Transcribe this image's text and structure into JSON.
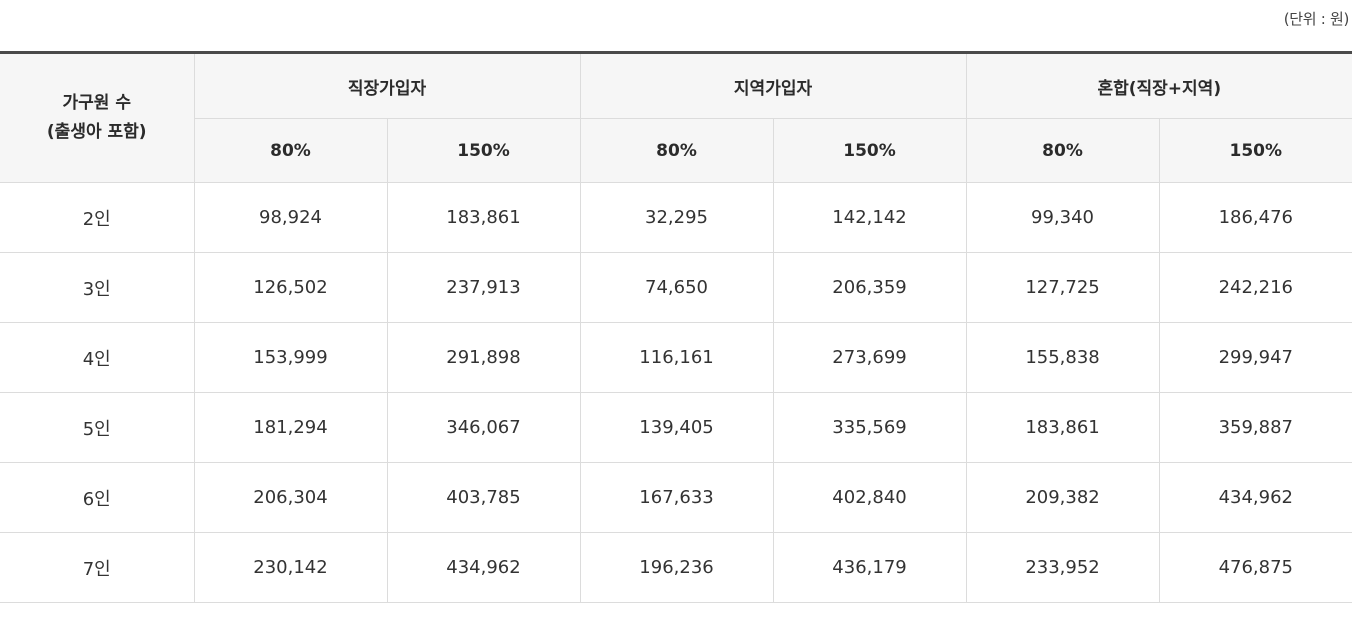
{
  "unit_note": "(단위 : 원)",
  "table": {
    "header": {
      "household": {
        "line1": "가구원 수",
        "line2": "(출생아 포함)"
      },
      "groups": [
        {
          "label": "직장가입자"
        },
        {
          "label": "지역가입자"
        },
        {
          "label": "혼합(직장+지역)"
        }
      ],
      "sub": [
        "80%",
        "150%",
        "80%",
        "150%",
        "80%",
        "150%"
      ]
    },
    "rows": [
      {
        "household": "2인",
        "values": [
          "98,924",
          "183,861",
          "32,295",
          "142,142",
          "99,340",
          "186,476"
        ]
      },
      {
        "household": "3인",
        "values": [
          "126,502",
          "237,913",
          "74,650",
          "206,359",
          "127,725",
          "242,216"
        ]
      },
      {
        "household": "4인",
        "values": [
          "153,999",
          "291,898",
          "116,161",
          "273,699",
          "155,838",
          "299,947"
        ]
      },
      {
        "household": "5인",
        "values": [
          "181,294",
          "346,067",
          "139,405",
          "335,569",
          "183,861",
          "359,887"
        ]
      },
      {
        "household": "6인",
        "values": [
          "206,304",
          "403,785",
          "167,633",
          "402,840",
          "209,382",
          "434,962"
        ]
      },
      {
        "household": "7인",
        "values": [
          "230,142",
          "434,962",
          "196,236",
          "436,179",
          "233,952",
          "476,875"
        ]
      }
    ]
  }
}
